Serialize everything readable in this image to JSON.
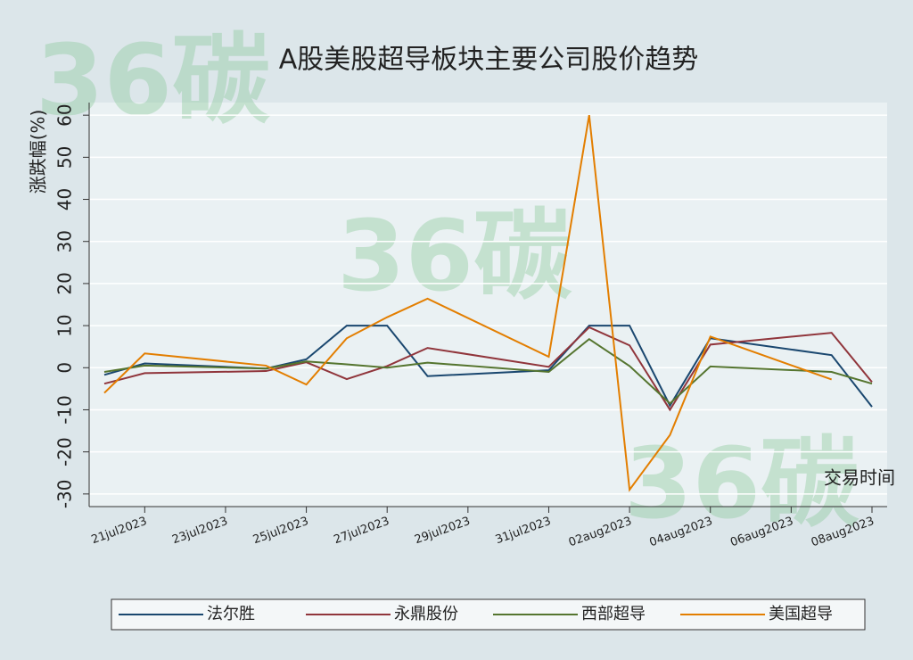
{
  "chart_data": {
    "type": "line",
    "title": "A股美股超导板块主要公司股价趋势",
    "watermark": "36碳",
    "y_label": "涨跌幅(%)",
    "x_label": "交易时间",
    "x": [
      "2023-07-20",
      "2023-07-21",
      "2023-07-24",
      "2023-07-25",
      "2023-07-26",
      "2023-07-27",
      "2023-07-28",
      "2023-07-31",
      "2023-08-01",
      "2023-08-02",
      "2023-08-03",
      "2023-08-04",
      "2023-08-07",
      "2023-08-08"
    ],
    "xlim": [
      "2023-07-20",
      "2023-08-08"
    ],
    "xticks": [
      {
        "value": "2023-07-21",
        "label": "21jul2023"
      },
      {
        "value": "2023-07-23",
        "label": "23jul2023"
      },
      {
        "value": "2023-07-25",
        "label": "25jul2023"
      },
      {
        "value": "2023-07-27",
        "label": "27jul2023"
      },
      {
        "value": "2023-07-29",
        "label": "29jul2023"
      },
      {
        "value": "2023-07-31",
        "label": "31jul2023"
      },
      {
        "value": "2023-08-02",
        "label": "02aug2023"
      },
      {
        "value": "2023-08-04",
        "label": "04aug2023"
      },
      {
        "value": "2023-08-06",
        "label": "06aug2023"
      },
      {
        "value": "2023-08-08",
        "label": "08aug2023"
      }
    ],
    "ylim": [
      -33,
      63
    ],
    "yticks": [
      -30,
      -20,
      -10,
      0,
      10,
      20,
      30,
      40,
      50,
      60
    ],
    "grid": true,
    "series": [
      {
        "name": "法尔胜",
        "color": "#1a476f",
        "values": [
          -1.7,
          1,
          -0.2,
          2,
          10,
          10,
          -2,
          -0.6,
          10,
          10,
          -9,
          7,
          3,
          -9.3
        ]
      },
      {
        "name": "永鼎股份",
        "color": "#90353b",
        "values": [
          -3.8,
          -1.3,
          -0.8,
          1.3,
          -2.7,
          0.4,
          4.7,
          0.2,
          9.6,
          5.3,
          -10,
          5.5,
          8.3,
          -3.4
        ]
      },
      {
        "name": "西部超导",
        "color": "#55752f",
        "values": [
          -1,
          0.5,
          -0.2,
          1.5,
          0.8,
          0,
          1.2,
          -1,
          6.8,
          0.4,
          -8.5,
          0.3,
          -1,
          -3.8
        ]
      },
      {
        "name": "美国超导",
        "color": "#e37e00",
        "values": [
          -6,
          3.4,
          0.5,
          -4,
          7,
          12,
          16.4,
          2.6,
          60,
          -29,
          -16,
          7.4,
          -2.8,
          null
        ]
      }
    ]
  }
}
